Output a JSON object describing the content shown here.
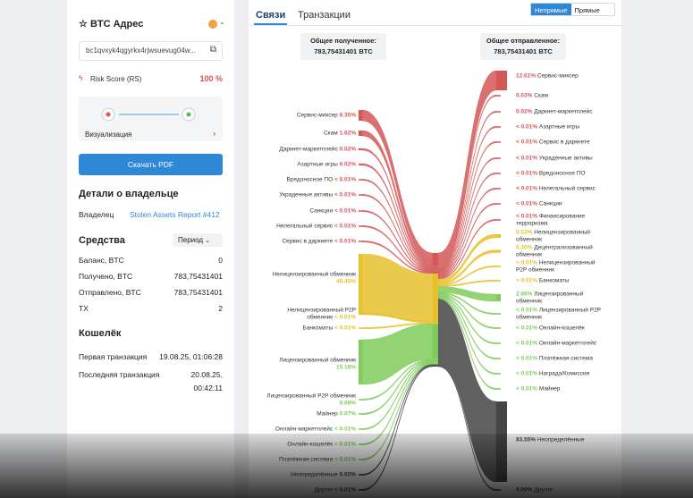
{
  "sidebar": {
    "address_title": "BTC Адрес",
    "address": "bc1qvxyk4qgyrkx4rjwsuevug04w...",
    "risk_label": "Risk Score (RS)",
    "risk_value": "100 %",
    "visualization": "Визуализация",
    "download_button": "Скачать PDF",
    "owner_title": "Детали о владельце",
    "owner_label": "Владелец",
    "owner_value": "Stolen Assets Report #412",
    "funds_title": "Средства",
    "period": "Период",
    "funds_rows": [
      [
        "Баланс, BTC",
        "0"
      ],
      [
        "Получено, BTC",
        "783,75431401"
      ],
      [
        "Отправлено, BTC",
        "783,75431401"
      ],
      [
        "TX",
        "2"
      ]
    ],
    "wallet_title": "Кошелёк",
    "wallet_rows": [
      [
        "Первая транзакция",
        "19.08.25, 01:06:28"
      ],
      [
        "Последняя транзакция",
        "20.08.25, 00:42:11"
      ]
    ]
  },
  "main": {
    "tabs": [
      "Связи",
      "Транзакции"
    ],
    "toggle": [
      "Непрямые",
      "Прямые"
    ],
    "received_label": "Общее полученное:",
    "received_value": "783,75431401 BTC",
    "sent_label": "Общее отправленное:",
    "sent_value": "783,75431401 BTC",
    "sources": [
      {
        "name": "Сервис-миксер",
        "share": "6.35%",
        "color": "#d45858"
      },
      {
        "name": "Скам",
        "share": "1.62%",
        "color": "#d45858"
      },
      {
        "name": "Даркнет-маркетплейс",
        "share": "0.02%",
        "color": "#d45858"
      },
      {
        "name": "Азартные игры",
        "share": "0.02%",
        "color": "#d45858"
      },
      {
        "name": "Вредоносное ПО",
        "share": "< 0.01%",
        "color": "#d45858"
      },
      {
        "name": "Украденные активы",
        "share": "< 0.01%",
        "color": "#d45858"
      },
      {
        "name": "Санкции",
        "share": "< 0.01%",
        "color": "#d45858"
      },
      {
        "name": "Нелегальный сервис",
        "share": "< 0.01%",
        "color": "#d45858"
      },
      {
        "name": "Сервис в даркнете",
        "share": "< 0.01%",
        "color": "#d45858"
      },
      {
        "name": "Нелицензированный обменник",
        "share": "46.45%",
        "color": "#e6c12b"
      },
      {
        "name": "Нелицензированный P2P обменник",
        "share": "< 0.01%",
        "color": "#e6c12b"
      },
      {
        "name": "Банкоматы",
        "share": "< 0.01%",
        "color": "#e6c12b"
      },
      {
        "name": "Лицензированный обменник",
        "share": "15.18%",
        "color": "#7fcb5c"
      },
      {
        "name": "Лицензированный P2P обменник",
        "share": "0.08%",
        "color": "#7fcb5c"
      },
      {
        "name": "Майнер",
        "share": "0.07%",
        "color": "#7fcb5c"
      },
      {
        "name": "Онлайн-маркетплейс",
        "share": "< 0.01%",
        "color": "#7fcb5c"
      },
      {
        "name": "Онлайн-кошелёк",
        "share": "< 0.01%",
        "color": "#7fcb5c"
      },
      {
        "name": "Платёжная система",
        "share": "< 0.01%",
        "color": "#7fcb5c"
      },
      {
        "name": "Неопределённые",
        "share": "0.02%",
        "color": "#454545"
      },
      {
        "name": "Другое",
        "share": "< 0.01%",
        "color": "#454545"
      }
    ],
    "destinations": [
      {
        "name": "Сервис-миксер",
        "share": "12.61%",
        "color": "#d45858"
      },
      {
        "name": "Скам",
        "share": "0.03%",
        "color": "#d45858"
      },
      {
        "name": "Даркнет-маркетплейс",
        "share": "0.02%",
        "color": "#d45858"
      },
      {
        "name": "Азартные игры",
        "share": "< 0.01%",
        "color": "#d45858"
      },
      {
        "name": "Сервис в даркнете",
        "share": "< 0.01%",
        "color": "#d45858"
      },
      {
        "name": "Украденные активы",
        "share": "< 0.01%",
        "color": "#d45858"
      },
      {
        "name": "Вредоносное ПО",
        "share": "< 0.01%",
        "color": "#d45858"
      },
      {
        "name": "Нелегальный сервис",
        "share": "< 0.01%",
        "color": "#d45858"
      },
      {
        "name": "Санкции",
        "share": "< 0.01%",
        "color": "#d45858"
      },
      {
        "name": "Финансирование терроризма",
        "share": "< 0.01%",
        "color": "#d45858"
      },
      {
        "name": "Нелицензированный обменник",
        "share": "0.53%",
        "color": "#e6c12b"
      },
      {
        "name": "Децентрализованный обменник",
        "share": "0.30%",
        "color": "#e6c12b"
      },
      {
        "name": "Нелицензированный P2P обменник",
        "share": "< 0.01%",
        "color": "#e6c12b"
      },
      {
        "name": "Банкоматы",
        "share": "< 0.01%",
        "color": "#e6c12b"
      },
      {
        "name": "Лицензированный обменник",
        "share": "2.66%",
        "color": "#7fcb5c"
      },
      {
        "name": "Лицензированный P2P обменник",
        "share": "< 0.01%",
        "color": "#7fcb5c"
      },
      {
        "name": "Онлайн-кошелёк",
        "share": "< 0.01%",
        "color": "#7fcb5c"
      },
      {
        "name": "Онлайн-маркетплейс",
        "share": "< 0.01%",
        "color": "#7fcb5c"
      },
      {
        "name": "Платёжная система",
        "share": "< 0.01%",
        "color": "#7fcb5c"
      },
      {
        "name": "Награда/Комиссия",
        "share": "< 0.01%",
        "color": "#7fcb5c"
      },
      {
        "name": "Майнер",
        "share": "< 0.01%",
        "color": "#7fcb5c"
      },
      {
        "name": "Неопределённые",
        "share": "83.55%",
        "color": "#454545"
      },
      {
        "name": "Другое",
        "share": "0.00%",
        "color": "#454545"
      }
    ]
  }
}
